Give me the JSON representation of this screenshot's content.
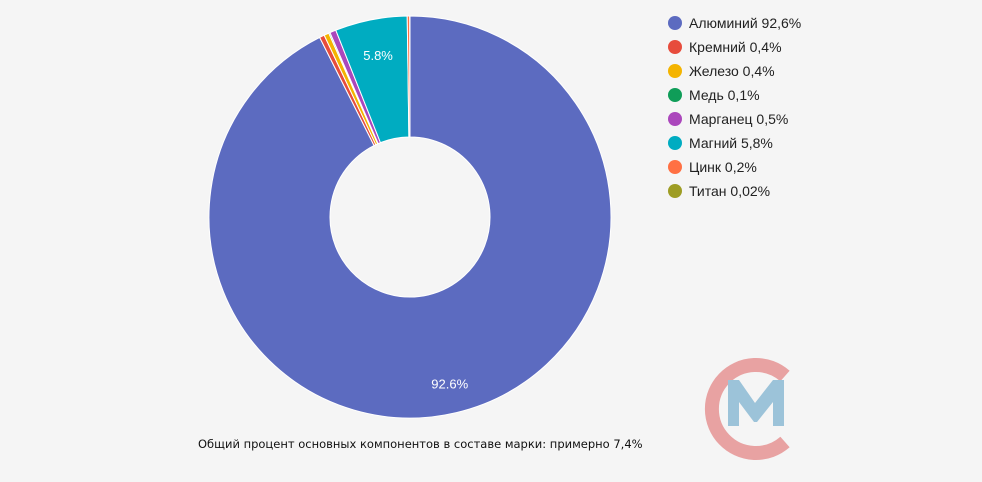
{
  "chart_data": {
    "type": "pie",
    "donut": true,
    "categories": [
      "Алюминий",
      "Кремний",
      "Железо",
      "Медь",
      "Марганец",
      "Магний",
      "Цинк",
      "Титан"
    ],
    "values": [
      92.6,
      0.4,
      0.4,
      0.1,
      0.5,
      5.8,
      0.2,
      0.02
    ],
    "colors": [
      "#5c6bc0",
      "#e74c3c",
      "#f4b400",
      "#0f9d58",
      "#ab47bc",
      "#00acc1",
      "#ff7043",
      "#9e9d24"
    ],
    "legend": [
      "Алюминий 92,6%",
      "Кремний 0,4%",
      "Железо 0,4%",
      "Медь 0,1%",
      "Марганец 0,5%",
      "Магний 5,8%",
      "Цинк 0,2%",
      "Титан 0,02%"
    ],
    "slice_labels": [
      {
        "index": 0,
        "text": "92.6%"
      },
      {
        "index": 5,
        "text": "5.8%"
      }
    ],
    "legend_position": "right"
  },
  "footnote": "Общий процент основных компонентов в составе марки: примерно 7,4%",
  "logo": {
    "name": "company-logo",
    "colors": [
      "#e8a2a2",
      "#9cc3d9"
    ]
  }
}
